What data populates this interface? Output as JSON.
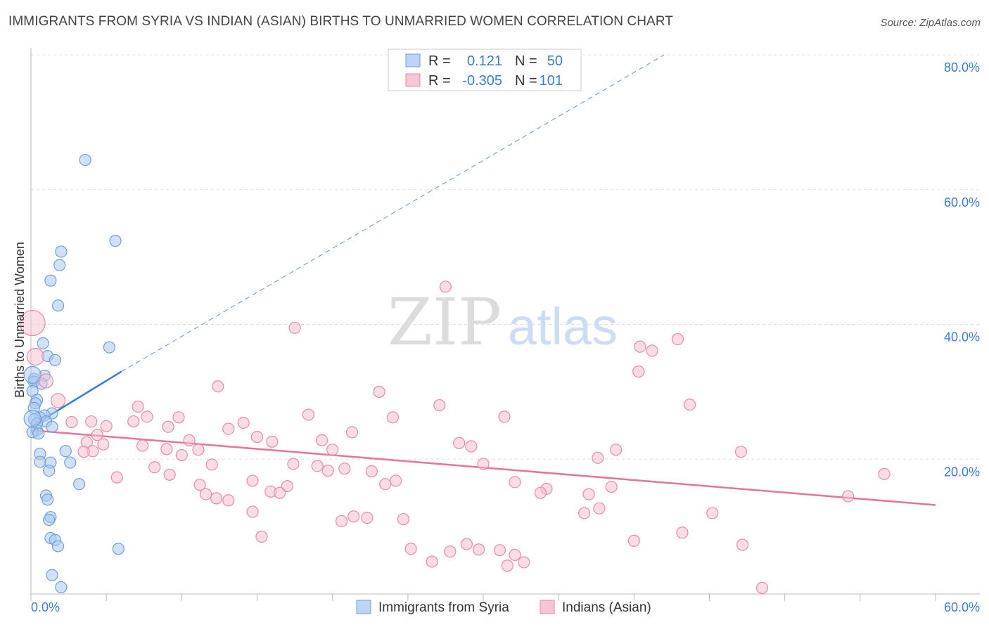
{
  "title": "IMMIGRANTS FROM SYRIA VS INDIAN (ASIAN) BIRTHS TO UNMARRIED WOMEN CORRELATION CHART",
  "source": "Source: ZipAtlas.com",
  "watermark": {
    "zip": "ZIP",
    "atlas": "atlas"
  },
  "colors": {
    "blue": "#a9c8f0",
    "blue_edge": "#6f9fd8",
    "blue_line": "#3a7bd5",
    "pink": "#f5bfd0",
    "pink_edge": "#e98aa8",
    "pink_line": "#e8729a",
    "axis_text": "#3a7bd5",
    "grid": "#dddddd"
  },
  "legend": {
    "rows": [
      {
        "r_label": "R =",
        "r_value": "0.121",
        "n_label": "N =",
        "n_value": "50"
      },
      {
        "r_label": "R =",
        "r_value": "-0.305",
        "n_label": "N =",
        "n_value": "101"
      }
    ]
  },
  "chart_data": {
    "type": "scatter",
    "ylabel": "Births to Unmarried Women",
    "xlim": [
      0,
      60
    ],
    "ylim": [
      0,
      80
    ],
    "x_tick_labels": [
      "0.0%",
      "60.0%"
    ],
    "y_tick_labels": [
      "20.0%",
      "40.0%",
      "60.0%",
      "80.0%"
    ],
    "y_ticks": [
      20,
      40,
      60,
      80
    ],
    "series": [
      {
        "name": "Immigrants from Syria",
        "color": "blue",
        "trend": {
          "solid": [
            [
              0,
              24.8
            ],
            [
              6.0,
              33.0
            ]
          ],
          "dashed": [
            [
              6.0,
              33.0
            ],
            [
              42.0,
              80.0
            ]
          ]
        },
        "points": [
          [
            3.6,
            64.4
          ],
          [
            5.6,
            52.4
          ],
          [
            2.0,
            50.8
          ],
          [
            1.9,
            48.8
          ],
          [
            1.3,
            46.5
          ],
          [
            1.8,
            42.8
          ],
          [
            5.2,
            36.6
          ],
          [
            0.8,
            37.2
          ],
          [
            1.1,
            35.3
          ],
          [
            1.6,
            34.7
          ],
          [
            0.9,
            32.4
          ],
          [
            0.2,
            31.9
          ],
          [
            0.2,
            31.5
          ],
          [
            0.7,
            31.2
          ],
          [
            0.1,
            30.1
          ],
          [
            0.4,
            28.8
          ],
          [
            0.3,
            28.3
          ],
          [
            0.2,
            27.6
          ],
          [
            1.4,
            26.8
          ],
          [
            0.9,
            26.5
          ],
          [
            0.6,
            26.2
          ],
          [
            0.2,
            25.9
          ],
          [
            1.0,
            25.6
          ],
          [
            0.4,
            25.3
          ],
          [
            1.4,
            24.8
          ],
          [
            0.4,
            24.3
          ],
          [
            0.1,
            24.0
          ],
          [
            0.5,
            23.8
          ],
          [
            2.3,
            21.2
          ],
          [
            0.6,
            20.8
          ],
          [
            0.6,
            19.6
          ],
          [
            1.3,
            19.5
          ],
          [
            2.6,
            19.5
          ],
          [
            1.2,
            18.3
          ],
          [
            3.2,
            16.3
          ],
          [
            1.0,
            14.6
          ],
          [
            1.1,
            14.0
          ],
          [
            1.3,
            11.4
          ],
          [
            1.2,
            11.0
          ],
          [
            1.3,
            8.3
          ],
          [
            1.6,
            8.0
          ],
          [
            1.8,
            7.1
          ],
          [
            5.8,
            6.7
          ],
          [
            1.4,
            2.8
          ],
          [
            2.0,
            1.0
          ]
        ],
        "big_points": [
          [
            0.1,
            32.5,
            12
          ],
          [
            0.1,
            26.0,
            12
          ]
        ]
      },
      {
        "name": "Indians (Asian)",
        "color": "pink",
        "trend": {
          "solid": [
            [
              0,
              24.3
            ],
            [
              60.0,
              13.2
            ]
          ]
        },
        "points": [
          [
            27.5,
            45.6
          ],
          [
            17.5,
            39.5
          ],
          [
            42.9,
            37.8
          ],
          [
            40.4,
            36.7
          ],
          [
            41.2,
            36.1
          ],
          [
            40.3,
            33.0
          ],
          [
            12.4,
            30.8
          ],
          [
            23.1,
            30.0
          ],
          [
            7.1,
            27.8
          ],
          [
            27.1,
            28.0
          ],
          [
            43.7,
            28.1
          ],
          [
            18.4,
            26.6
          ],
          [
            7.7,
            26.3
          ],
          [
            24.0,
            26.2
          ],
          [
            9.8,
            26.2
          ],
          [
            31.4,
            26.3
          ],
          [
            6.8,
            25.6
          ],
          [
            14.1,
            25.4
          ],
          [
            4.0,
            25.6
          ],
          [
            2.7,
            25.5
          ],
          [
            5.0,
            24.9
          ],
          [
            13.1,
            24.5
          ],
          [
            9.1,
            24.8
          ],
          [
            21.3,
            24.0
          ],
          [
            4.4,
            23.6
          ],
          [
            15.0,
            23.3
          ],
          [
            10.5,
            22.8
          ],
          [
            19.3,
            22.8
          ],
          [
            16.0,
            22.6
          ],
          [
            3.7,
            22.5
          ],
          [
            4.8,
            22.2
          ],
          [
            7.4,
            22.0
          ],
          [
            28.4,
            22.4
          ],
          [
            29.2,
            21.9
          ],
          [
            9.0,
            21.5
          ],
          [
            11.1,
            21.4
          ],
          [
            4.1,
            21.2
          ],
          [
            3.5,
            21.1
          ],
          [
            20.0,
            21.4
          ],
          [
            38.8,
            21.4
          ],
          [
            10.0,
            20.6
          ],
          [
            47.1,
            21.1
          ],
          [
            37.6,
            20.2
          ],
          [
            12.0,
            19.2
          ],
          [
            17.4,
            19.3
          ],
          [
            19.0,
            19.0
          ],
          [
            30.0,
            19.3
          ],
          [
            8.2,
            18.8
          ],
          [
            22.6,
            18.2
          ],
          [
            9.2,
            17.7
          ],
          [
            20.8,
            18.6
          ],
          [
            19.7,
            18.3
          ],
          [
            56.6,
            17.8
          ],
          [
            5.7,
            17.3
          ],
          [
            14.7,
            16.8
          ],
          [
            24.2,
            16.8
          ],
          [
            32.1,
            16.6
          ],
          [
            23.5,
            16.3
          ],
          [
            11.2,
            16.2
          ],
          [
            17.0,
            16.0
          ],
          [
            38.5,
            15.9
          ],
          [
            15.9,
            15.2
          ],
          [
            34.2,
            15.6
          ],
          [
            16.5,
            15.0
          ],
          [
            11.6,
            14.8
          ],
          [
            37.0,
            14.8
          ],
          [
            33.8,
            15.0
          ],
          [
            54.2,
            14.5
          ],
          [
            12.3,
            14.2
          ],
          [
            13.1,
            13.9
          ],
          [
            37.7,
            12.7
          ],
          [
            14.7,
            12.2
          ],
          [
            36.7,
            12.0
          ],
          [
            45.2,
            12.0
          ],
          [
            22.3,
            11.3
          ],
          [
            24.7,
            11.1
          ],
          [
            21.4,
            11.5
          ],
          [
            20.6,
            10.8
          ],
          [
            43.2,
            9.1
          ],
          [
            15.3,
            8.5
          ],
          [
            40.0,
            7.9
          ],
          [
            47.2,
            7.3
          ],
          [
            28.9,
            7.4
          ],
          [
            25.2,
            6.7
          ],
          [
            27.8,
            6.3
          ],
          [
            29.7,
            6.6
          ],
          [
            31.1,
            6.5
          ],
          [
            32.1,
            5.8
          ],
          [
            26.6,
            4.8
          ],
          [
            32.7,
            4.7
          ],
          [
            31.6,
            4.2
          ],
          [
            48.5,
            0.9
          ]
        ],
        "big_points": [
          [
            0.1,
            40.2,
            18
          ],
          [
            0.3,
            35.2,
            12
          ],
          [
            1.0,
            31.6,
            10
          ],
          [
            1.8,
            28.7,
            10
          ]
        ]
      }
    ]
  },
  "bottom_legend": [
    {
      "label": "Immigrants from Syria",
      "color": "blue"
    },
    {
      "label": "Indians (Asian)",
      "color": "pink"
    }
  ]
}
